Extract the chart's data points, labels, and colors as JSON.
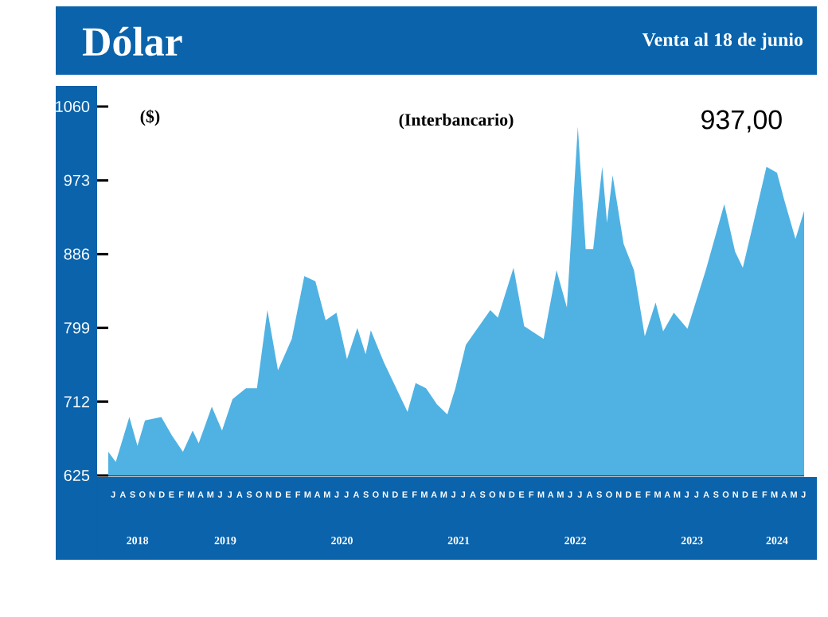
{
  "chart_data": {
    "type": "area",
    "title": "Dólar",
    "subtitle": "Venta al 18 de junio",
    "ylabel": "($)",
    "annotations": [
      "(Interbancario)",
      "937,00",
      "J",
      "A",
      "S",
      "O",
      "N",
      "D",
      "E",
      "F",
      "M",
      "A",
      "M",
      "J",
      "J",
      "A",
      "S",
      "O",
      "N",
      "D",
      "E",
      "F",
      "M",
      "A",
      "M",
      "J",
      "J",
      "A",
      "S",
      "O",
      "N",
      "D",
      "E",
      "F",
      "M",
      "A",
      "M",
      "J",
      "J",
      "A",
      "S",
      "O",
      "N",
      "D",
      "E",
      "F",
      "M",
      "A",
      "M",
      "J",
      "J",
      "A",
      "S",
      "O",
      "N",
      "D",
      "E",
      "F",
      "M",
      "A",
      "M",
      "J",
      "J",
      "A",
      "S",
      "O",
      "N",
      "D",
      "E",
      "F",
      "M",
      "A",
      "M",
      "J"
    ],
    "color": "#4fb2e3",
    "x": [
      "2018-07-01",
      "2018-07-25",
      "2018-09-06",
      "2018-10-01",
      "2018-10-25",
      "2018-12-15",
      "2019-01-18",
      "2019-02-20",
      "2019-03-22",
      "2019-04-10",
      "2019-05-21",
      "2019-06-22",
      "2019-07-25",
      "2019-09-06",
      "2019-10-10",
      "2019-11-12",
      "2019-12-15",
      "2020-01-28",
      "2020-03-06",
      "2020-04-10",
      "2020-05-12",
      "2020-06-15",
      "2020-07-18",
      "2020-08-20",
      "2020-09-15",
      "2020-10-01",
      "2020-11-12",
      "2021-01-25",
      "2021-02-18",
      "2021-03-22",
      "2021-04-25",
      "2021-05-28",
      "2021-06-22",
      "2021-07-25",
      "2021-10-10",
      "2021-11-03",
      "2021-12-22",
      "2022-01-25",
      "2022-03-25",
      "2022-05-04",
      "2022-06-06",
      "2022-07-10",
      "2022-08-04",
      "2022-08-28",
      "2022-09-25",
      "2022-10-10",
      "2022-10-28",
      "2022-12-01",
      "2023-01-03",
      "2023-02-06",
      "2023-03-10",
      "2023-04-03",
      "2023-05-06",
      "2023-06-18",
      "2023-08-15",
      "2023-10-12",
      "2023-11-15",
      "2023-12-09",
      "2024-01-12",
      "2024-02-21",
      "2024-03-25",
      "2024-04-18",
      "2024-05-22",
      "2024-06-18"
    ],
    "values": [
      653,
      641,
      694,
      660,
      690,
      694,
      672,
      653,
      678,
      663,
      706,
      678,
      715,
      728,
      728,
      820,
      749,
      786,
      860,
      854,
      808,
      817,
      762,
      799,
      768,
      796,
      758,
      700,
      734,
      728,
      709,
      697,
      728,
      779,
      820,
      811,
      870,
      801,
      786,
      867,
      823,
      1036,
      892,
      892,
      989,
      923,
      979,
      898,
      867,
      789,
      829,
      795,
      817,
      798,
      867,
      945,
      889,
      870,
      923,
      989,
      982,
      948,
      904,
      937
    ],
    "xlim": [
      "2018-07-01",
      "2024-06-18"
    ],
    "ylim": [
      625,
      1060
    ],
    "yticks": [
      625,
      712,
      799,
      886,
      973,
      1060
    ],
    "xticks": [
      {
        "value": "2018-10-01",
        "label": "2018"
      },
      {
        "value": "2019-07-02",
        "label": "2019"
      },
      {
        "value": "2020-07-02",
        "label": "2020"
      },
      {
        "value": "2021-07-02",
        "label": "2021"
      },
      {
        "value": "2022-07-02",
        "label": "2022"
      },
      {
        "value": "2023-07-02",
        "label": "2023"
      },
      {
        "value": "2024-03-25",
        "label": "2024"
      }
    ]
  }
}
